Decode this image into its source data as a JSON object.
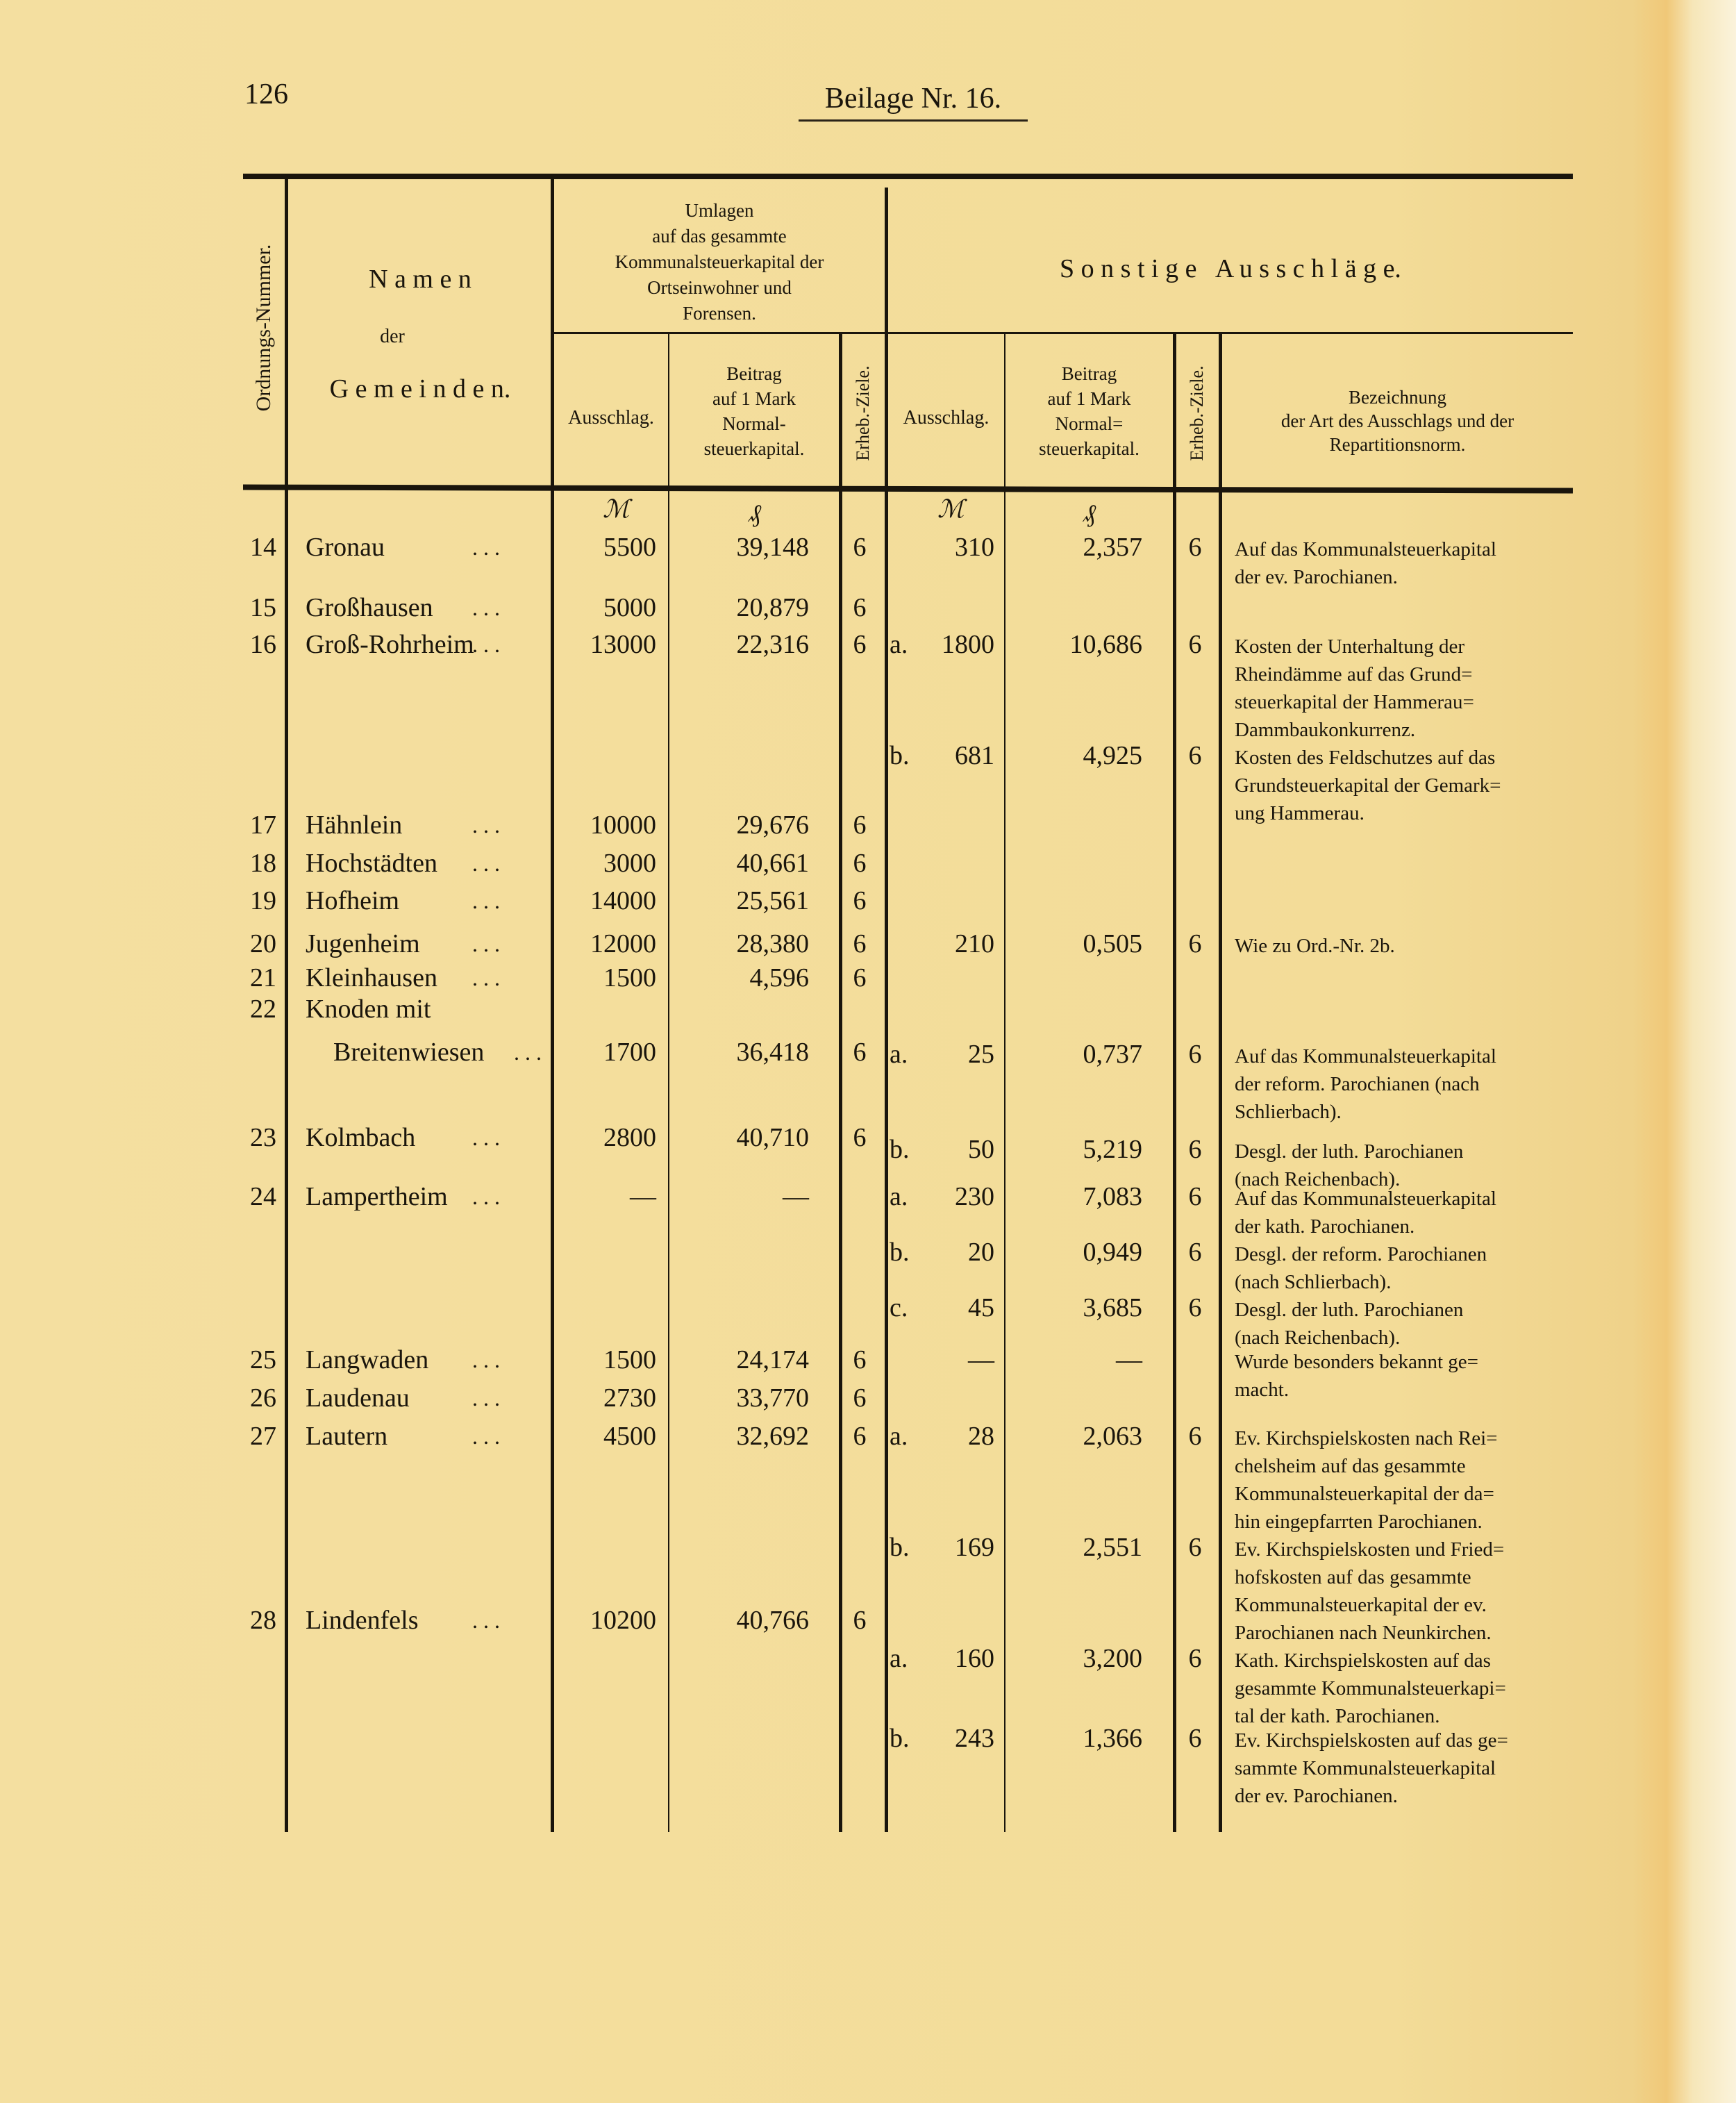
{
  "page_number": "126",
  "page_title": "Beilage Nr. 16.",
  "header": {
    "ordnungs_nummer": "Ordnungs-Nummer.",
    "namen": "N a m e n",
    "der": "der",
    "gemeinden": "G e m e i n d e n.",
    "umlagen": "Umlagen\nauf das gesammte\nKommunalsteuerkapital der\nOrtseinwohner und\nForensen.",
    "sonstige": "S o n s t i g e   A u s s c h l ä g e.",
    "ausschlag": "Ausschlag.",
    "beitrag": "Beitrag\nauf 1 Mark\nNormal-\nsteuerkapital.",
    "beitrag2": "Beitrag\nauf 1 Mark\nNormal=\nsteuerkapital.",
    "erheb_ziele": "Erheb.-Ziele.",
    "bezeichnung": "Bezeichnung\nder Art des Ausschlags und der\nRepartitionsnorm.",
    "unit_mark": "ℳ",
    "unit_pf": "₰"
  },
  "leader": ".   .   .",
  "rows": [
    {
      "nr": "14",
      "name": "Gronau",
      "ausschlag": "5500",
      "beitrag": "39,148",
      "ziele": "6",
      "sonstige": [
        {
          "label": "",
          "ausschlag": "310",
          "beitrag": "2,357",
          "ziele": "6",
          "desc": "Auf das Kommunalsteuerkapital\nder ev. Parochianen."
        }
      ]
    },
    {
      "nr": "15",
      "name": "Großhausen",
      "ausschlag": "5000",
      "beitrag": "20,879",
      "ziele": "6",
      "sonstige": []
    },
    {
      "nr": "16",
      "name": "Groß-Rohrheim",
      "ausschlag": "13000",
      "beitrag": "22,316",
      "ziele": "6",
      "sonstige": [
        {
          "label": "a.",
          "ausschlag": "1800",
          "beitrag": "10,686",
          "ziele": "6",
          "desc": "Kosten der Unterhaltung der\nRheindämme auf das Grund=\nsteuerkapital der Hammerau=\nDammbaukonkurrenz."
        },
        {
          "label": "b.",
          "ausschlag": "681",
          "beitrag": "4,925",
          "ziele": "6",
          "desc": "Kosten des Feldschutzes auf das\nGrundsteuerkapital der Gemark=\nung Hammerau."
        }
      ]
    },
    {
      "nr": "17",
      "name": "Hähnlein",
      "ausschlag": "10000",
      "beitrag": "29,676",
      "ziele": "6",
      "sonstige": []
    },
    {
      "nr": "18",
      "name": "Hochstädten",
      "ausschlag": "3000",
      "beitrag": "40,661",
      "ziele": "6",
      "sonstige": []
    },
    {
      "nr": "19",
      "name": "Hofheim",
      "ausschlag": "14000",
      "beitrag": "25,561",
      "ziele": "6",
      "sonstige": []
    },
    {
      "nr": "20",
      "name": "Jugenheim",
      "ausschlag": "12000",
      "beitrag": "28,380",
      "ziele": "6",
      "sonstige": [
        {
          "label": "",
          "ausschlag": "210",
          "beitrag": "0,505",
          "ziele": "6",
          "desc": "Wie zu Ord.-Nr. 2b."
        }
      ]
    },
    {
      "nr": "21",
      "name": "Kleinhausen",
      "ausschlag": "1500",
      "beitrag": "4,596",
      "ziele": "6",
      "sonstige": []
    },
    {
      "nr": "22",
      "name": "Knoden mit",
      "name2": "Breitenwiesen",
      "ausschlag": "1700",
      "beitrag": "36,418",
      "ziele": "6",
      "sonstige": [
        {
          "label": "a.",
          "ausschlag": "25",
          "beitrag": "0,737",
          "ziele": "6",
          "desc": "Auf das Kommunalsteuerkapital\nder reform. Parochianen (nach\nSchlierbach)."
        },
        {
          "label": "b.",
          "ausschlag": "50",
          "beitrag": "5,219",
          "ziele": "6",
          "desc": "Desgl. der luth. Parochianen\n(nach Reichenbach)."
        }
      ]
    },
    {
      "nr": "23",
      "name": "Kolmbach",
      "ausschlag": "2800",
      "beitrag": "40,710",
      "ziele": "6",
      "sonstige": [
        {
          "label": "a.",
          "ausschlag": "230",
          "beitrag": "7,083",
          "ziele": "6",
          "desc": "Auf das Kommunalsteuerkapital\nder kath. Parochianen."
        },
        {
          "label": "b.",
          "ausschlag": "20",
          "beitrag": "0,949",
          "ziele": "6",
          "desc": "Desgl. der reform. Parochianen\n(nach Schlierbach)."
        },
        {
          "label": "c.",
          "ausschlag": "45",
          "beitrag": "3,685",
          "ziele": "6",
          "desc": "Desgl. der luth. Parochianen\n(nach Reichenbach)."
        }
      ]
    },
    {
      "nr": "24",
      "name": "Lampertheim",
      "ausschlag": "—",
      "beitrag": "—",
      "ziele": "",
      "sonstige": [
        {
          "label": "",
          "ausschlag": "—",
          "beitrag": "—",
          "ziele": "",
          "desc": "Wurde besonders bekannt ge=\nmacht."
        }
      ]
    },
    {
      "nr": "25",
      "name": "Langwaden",
      "ausschlag": "1500",
      "beitrag": "24,174",
      "ziele": "6",
      "sonstige": []
    },
    {
      "nr": "26",
      "name": "Laudenau",
      "ausschlag": "2730",
      "beitrag": "33,770",
      "ziele": "6",
      "sonstige": [
        {
          "label": "a.",
          "ausschlag": "28",
          "beitrag": "2,063",
          "ziele": "6",
          "desc": "Ev. Kirchspielskosten nach Rei=\nchelsheim auf das gesammte\nKommunalsteuerkapital der da=\nhin eingepfarrten Parochianen."
        },
        {
          "label": "b.",
          "ausschlag": "169",
          "beitrag": "2,551",
          "ziele": "6",
          "desc": "Ev. Kirchspielskosten und Fried=\nhofskosten auf das gesammte\nKommunalsteuerkapital der ev.\nParochianen nach Neunkirchen."
        }
      ]
    },
    {
      "nr": "27",
      "name": "Lautern",
      "ausschlag": "4500",
      "beitrag": "32,692",
      "ziele": "6",
      "sonstige": []
    },
    {
      "nr": "28",
      "name": "Lindenfels",
      "ausschlag": "10200",
      "beitrag": "40,766",
      "ziele": "6",
      "sonstige": [
        {
          "label": "a.",
          "ausschlag": "160",
          "beitrag": "3,200",
          "ziele": "6",
          "desc": "Kath. Kirchspielskosten auf das\ngesammte Kommunalsteuerkapi=\ntal der kath. Parochianen."
        },
        {
          "label": "b.",
          "ausschlag": "243",
          "beitrag": "1,366",
          "ziele": "6",
          "desc": "Ev. Kirchspielskosten auf das ge=\nsammte Kommunalsteuerkapital\nder ev. Parochianen."
        }
      ]
    }
  ]
}
